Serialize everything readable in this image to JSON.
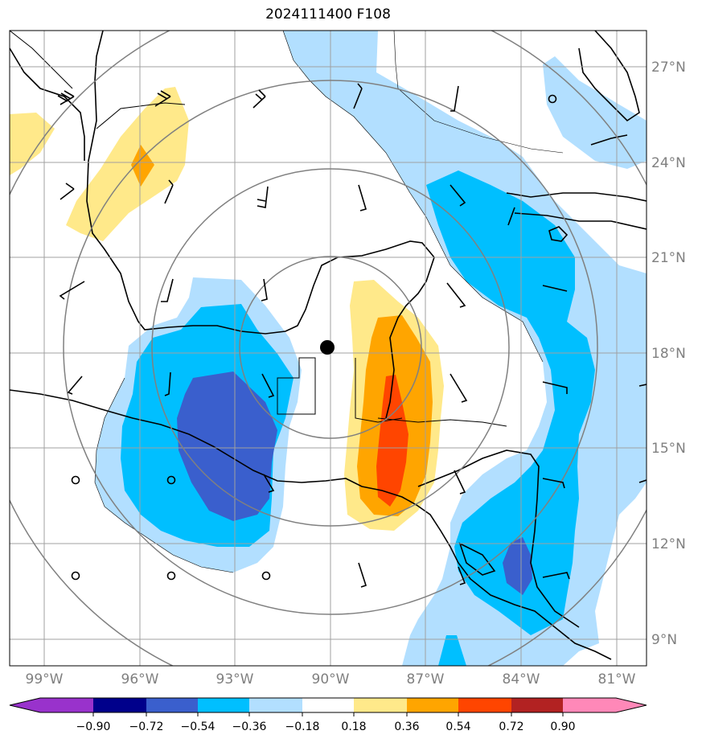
{
  "title": "2024111400 F108",
  "colors": {
    "contour_levels": [
      "#9932cc",
      "#00008b",
      "#3a5fcd",
      "#00bfff",
      "#b2dfff",
      "#ffffff",
      "#ffe98a",
      "#ffa500",
      "#ff4500",
      "#b22222",
      "#ff88b8"
    ],
    "grid": "#a0a0a0",
    "range_rings": "#808080",
    "coastline": "#000000"
  },
  "lat_labels": [
    "27°N",
    "24°N",
    "21°N",
    "18°N",
    "15°N",
    "12°N",
    "9°N"
  ],
  "lon_labels": [
    "99°W",
    "96°W",
    "93°W",
    "90°W",
    "87°W",
    "84°W",
    "81°W"
  ],
  "colorbar": {
    "ticks": [
      "−0.90",
      "−0.72",
      "−0.54",
      "−0.36",
      "−0.18",
      "0.18",
      "0.36",
      "0.54",
      "0.72",
      "0.90"
    ],
    "extend": "both"
  },
  "center_marker": {
    "lat": 18.2,
    "lon": -90.0,
    "icon": "storm-center-dot"
  },
  "range_rings_count": 4
}
